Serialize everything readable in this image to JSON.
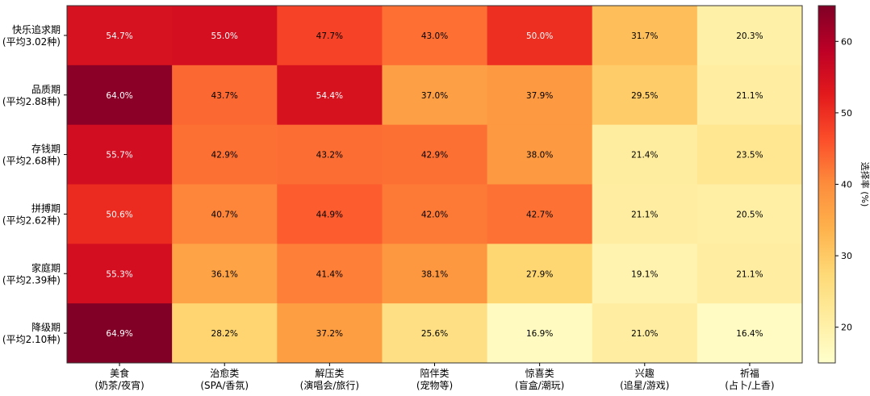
{
  "chart_data": {
    "type": "heatmap",
    "rows": [
      {
        "name": "快乐追求期",
        "sub": "(平均3.02种)"
      },
      {
        "name": "品质期",
        "sub": "(平均2.88种)"
      },
      {
        "name": "存钱期",
        "sub": "(平均2.68种)"
      },
      {
        "name": "拼搏期",
        "sub": "(平均2.62种)"
      },
      {
        "name": "家庭期",
        "sub": "(平均2.39种)"
      },
      {
        "name": "降级期",
        "sub": "(平均2.10种)"
      }
    ],
    "columns": [
      {
        "name": "美食",
        "sub": "(奶茶/夜宵)"
      },
      {
        "name": "治愈类",
        "sub": "(SPA/香氛)"
      },
      {
        "name": "解压类",
        "sub": "(演唱会/旅行)"
      },
      {
        "name": "陪伴类",
        "sub": "(宠物等)"
      },
      {
        "name": "惊喜类",
        "sub": "(盲盒/潮玩)"
      },
      {
        "name": "兴趣",
        "sub": "(追星/游戏)"
      },
      {
        "name": "祈福",
        "sub": "(占卜/上香)"
      }
    ],
    "values": [
      [
        54.7,
        55.0,
        47.7,
        43.0,
        50.0,
        31.7,
        20.3
      ],
      [
        64.0,
        43.7,
        54.4,
        37.0,
        37.9,
        29.5,
        21.1
      ],
      [
        55.7,
        42.9,
        43.2,
        42.9,
        38.0,
        21.4,
        23.5
      ],
      [
        50.6,
        40.7,
        44.9,
        42.0,
        42.7,
        21.1,
        20.5
      ],
      [
        55.3,
        36.1,
        41.4,
        38.1,
        27.9,
        19.1,
        21.1
      ],
      [
        64.9,
        28.2,
        37.2,
        25.6,
        16.9,
        21.0,
        16.4
      ]
    ],
    "value_suffix": "%",
    "colormap": "YlOrRd",
    "colorbar": {
      "label": "选择率 (%)",
      "range": [
        15,
        65
      ],
      "ticks": [
        20,
        30,
        40,
        50,
        60
      ]
    }
  }
}
